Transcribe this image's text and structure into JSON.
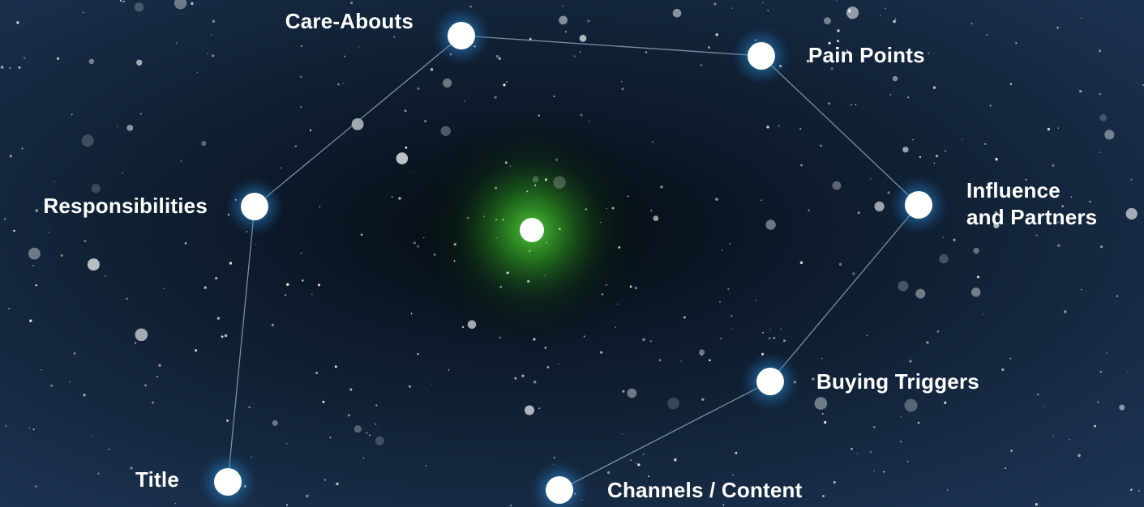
{
  "nodes": [
    {
      "label": "Care-Abouts"
    },
    {
      "label": "Pain Points"
    },
    {
      "label": [
        "Influence",
        "and Partners"
      ]
    },
    {
      "label": "Buying Triggers"
    },
    {
      "label": "Channels / Content"
    },
    {
      "label": "Title"
    },
    {
      "label": "Responsibilities"
    }
  ]
}
